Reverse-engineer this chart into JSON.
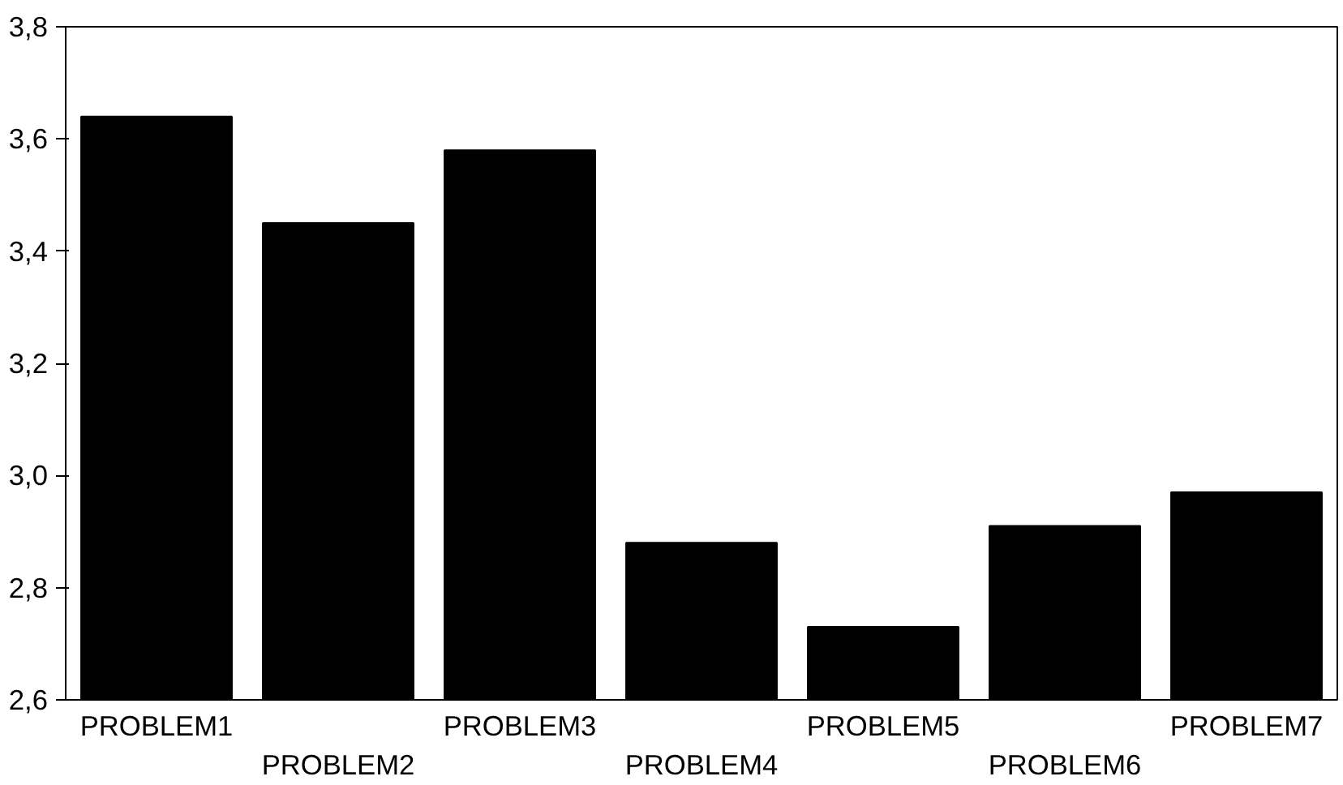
{
  "chart_data": {
    "type": "bar",
    "categories": [
      "PROBLEM1",
      "PROBLEM2",
      "PROBLEM3",
      "PROBLEM4",
      "PROBLEM5",
      "PROBLEM6",
      "PROBLEM7"
    ],
    "values": [
      3.64,
      3.45,
      3.58,
      2.88,
      2.73,
      2.91,
      2.97
    ],
    "color": "#000000",
    "ylim": [
      2.6,
      3.8
    ],
    "yticks": [
      {
        "value": 2.6,
        "label": "2,6"
      },
      {
        "value": 2.8,
        "label": "2,8"
      },
      {
        "value": 3.0,
        "label": "3,0"
      },
      {
        "value": 3.2,
        "label": "3,2"
      },
      {
        "value": 3.4,
        "label": "3,4"
      },
      {
        "value": 3.6,
        "label": "3,6"
      },
      {
        "value": 3.8,
        "label": "3,8"
      }
    ],
    "grid": false
  }
}
